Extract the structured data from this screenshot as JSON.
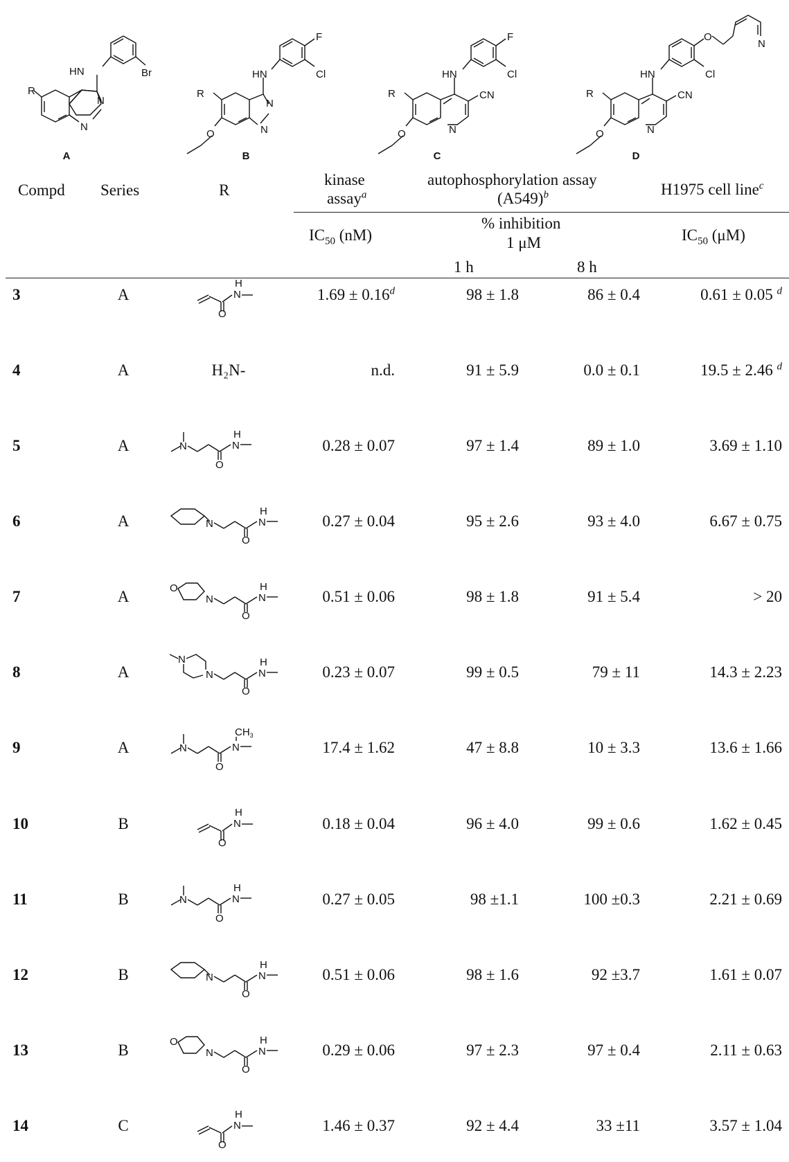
{
  "scaffolds": [
    {
      "id": "A",
      "label": "A",
      "atoms": {
        "r": "R",
        "nh": "HN",
        "x1": "Br",
        "n1": "N",
        "n2": "N"
      }
    },
    {
      "id": "B",
      "label": "B",
      "atoms": {
        "r": "R",
        "nh": "HN",
        "x1": "F",
        "x2": "Cl",
        "n1": "N",
        "n2": "N",
        "o": "O"
      }
    },
    {
      "id": "C",
      "label": "C",
      "atoms": {
        "r": "R",
        "nh": "HN",
        "x1": "F",
        "x2": "Cl",
        "cn": "CN",
        "n1": "N",
        "o": "O"
      }
    },
    {
      "id": "D",
      "label": "D",
      "atoms": {
        "r": "R",
        "nh": "HN",
        "x2": "Cl",
        "cn": "CN",
        "n1": "N",
        "o": "O",
        "o2": "O",
        "npy": "N"
      }
    }
  ],
  "headers": {
    "compd": "Compd",
    "series": "Series",
    "r": "R",
    "kinase_1": "kinase",
    "kinase_2": "assay",
    "kinase_sup": "a",
    "auto_1": "autophosphorylation assay",
    "auto_2": "(A549)",
    "auto_sup": "b",
    "h1975": "H1975 cell line",
    "h1975_sup": "c",
    "ic50_nm_pre": "IC",
    "ic50_nm_sub": "50",
    "ic50_nm_post": " (nM)",
    "inhib_1": "% inhibition",
    "inhib_2": "1 μM",
    "ic50_um_pre": "IC",
    "ic50_um_sub": "50",
    "ic50_um_post": " (μM)",
    "t1": "1 h",
    "t8": "8 h"
  },
  "rows": [
    {
      "compd": "3",
      "series": "A",
      "r_type": "acrylamide",
      "r_text": "",
      "kinase": "1.69 ± 0.16",
      "kinase_sup": "d",
      "h1": "98 ± 1.8",
      "h8": "86 ± 0.4",
      "ic50": "0.61 ± 0.05 ",
      "ic50_sup": "d"
    },
    {
      "compd": "4",
      "series": "A",
      "r_type": "text",
      "r_text": "H₂N-",
      "kinase": "n.d.",
      "kinase_sup": "",
      "h1": "91 ± 5.9",
      "h8": "0.0 ± 0.1",
      "ic50": "19.5 ± 2.46 ",
      "ic50_sup": "d"
    },
    {
      "compd": "5",
      "series": "A",
      "r_type": "dimethylamino",
      "r_text": "",
      "kinase": "0.28 ± 0.07",
      "kinase_sup": "",
      "h1": "97 ± 1.4",
      "h8": "89 ± 1.0",
      "ic50": "3.69  ± 1.10",
      "ic50_sup": ""
    },
    {
      "compd": "6",
      "series": "A",
      "r_type": "piperidine",
      "r_text": "",
      "kinase": "0.27 ± 0.04",
      "kinase_sup": "",
      "h1": "95 ± 2.6",
      "h8": "93 ± 4.0",
      "ic50": "6.67 ± 0.75",
      "ic50_sup": ""
    },
    {
      "compd": "7",
      "series": "A",
      "r_type": "morpholine",
      "r_text": "",
      "kinase": "0.51 ± 0.06",
      "kinase_sup": "",
      "h1": "98 ± 1.8",
      "h8": "91 ± 5.4",
      "ic50": "> 20",
      "ic50_sup": ""
    },
    {
      "compd": "8",
      "series": "A",
      "r_type": "methylpiperazine",
      "r_text": "",
      "kinase": "0.23 ± 0.07",
      "kinase_sup": "",
      "h1": "99 ± 0.5",
      "h8": "79 ± 11",
      "ic50": "14.3 ± 2.23",
      "ic50_sup": ""
    },
    {
      "compd": "9",
      "series": "A",
      "r_type": "nmethyl",
      "r_text": "",
      "kinase": "17.4 ± 1.62",
      "kinase_sup": "",
      "h1": "47 ± 8.8",
      "h8": "10 ± 3.3",
      "ic50": "13.6 ± 1.66",
      "ic50_sup": ""
    },
    {
      "compd": "10",
      "series": "B",
      "r_type": "acrylamide",
      "r_text": "",
      "kinase": "0.18 ± 0.04",
      "kinase_sup": "",
      "h1": "96 ± 4.0",
      "h8": "99 ± 0.6",
      "ic50": "1.62 ± 0.45",
      "ic50_sup": ""
    },
    {
      "compd": "11",
      "series": "B",
      "r_type": "dimethylamino",
      "r_text": "",
      "kinase": "0.27 ± 0.05",
      "kinase_sup": "",
      "h1": "98 ±1.1",
      "h8": "100 ±0.3",
      "ic50": "2.21 ± 0.69",
      "ic50_sup": ""
    },
    {
      "compd": "12",
      "series": "B",
      "r_type": "piperidine",
      "r_text": "",
      "kinase": "0.51 ± 0.06",
      "kinase_sup": "",
      "h1": "98 ± 1.6",
      "h8": "92 ±3.7",
      "ic50": "1.61 ± 0.07",
      "ic50_sup": ""
    },
    {
      "compd": "13",
      "series": "B",
      "r_type": "morpholine",
      "r_text": "",
      "kinase": "0.29 ± 0.06",
      "kinase_sup": "",
      "h1": "97 ± 2.3",
      "h8": "97 ± 0.4",
      "ic50": "2.11 ± 0.63",
      "ic50_sup": ""
    },
    {
      "compd": "14",
      "series": "C",
      "r_type": "acrylamide",
      "r_text": "",
      "kinase": "1.46 ± 0.37",
      "kinase_sup": "",
      "h1": "92 ± 4.4",
      "h8": "33 ±11",
      "ic50": "3.57 ± 1.04",
      "ic50_sup": ""
    }
  ],
  "r_atom_labels": {
    "nh": "H",
    "n": "N",
    "o": "O",
    "ch3": "CH",
    "ch3_sub": "3"
  }
}
